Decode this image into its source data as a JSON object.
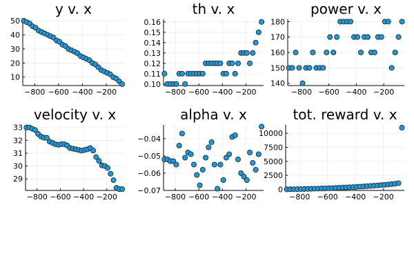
{
  "colors": {
    "marker": "#1f9ad9",
    "marker_edge": "#1a1a1a",
    "grid": "#ececec",
    "axis": "#000000"
  },
  "chart_data": [
    {
      "type": "scatter",
      "title": "y v. x",
      "xlim": [
        -900,
        -50
      ],
      "ylim": [
        4,
        51
      ],
      "xticks": [
        -800,
        -600,
        -400,
        -200
      ],
      "xtick_labels": [
        "−800",
        "−600",
        "−400",
        "−200"
      ],
      "yticks": [
        10,
        20,
        30,
        40,
        50
      ],
      "ytick_labels": [
        "10",
        "20",
        "30",
        "40",
        "50"
      ],
      "grid": true,
      "legend": "none",
      "x": [
        -892,
        -867,
        -842,
        -817,
        -792,
        -767,
        -742,
        -717,
        -692,
        -667,
        -642,
        -617,
        -592,
        -567,
        -542,
        -517,
        -492,
        -467,
        -442,
        -417,
        -392,
        -367,
        -342,
        -317,
        -292,
        -267,
        -242,
        -217,
        -192,
        -167,
        -142,
        -117,
        -92,
        -67
      ],
      "y": [
        50,
        49,
        48,
        46,
        45,
        43,
        42,
        41,
        40,
        39,
        38,
        36,
        35,
        33,
        32,
        30,
        29,
        28,
        27,
        25,
        24,
        23,
        22,
        20,
        19,
        17,
        15,
        14,
        13,
        12,
        10,
        9,
        7,
        5
      ]
    },
    {
      "type": "scatter",
      "title": "th v. x",
      "xlim": [
        -900,
        -50
      ],
      "ylim": [
        0.0985,
        0.1625
      ],
      "xticks": [
        -800,
        -600,
        -400,
        -200
      ],
      "xtick_labels": [
        "−800",
        "−600",
        "−400",
        "−200"
      ],
      "yticks": [
        0.1,
        0.11,
        0.12,
        0.13,
        0.14,
        0.15,
        0.16
      ],
      "ytick_labels": [
        "0.10",
        "0.11",
        "0.12",
        "0.13",
        "0.14",
        "0.15",
        "0.16"
      ],
      "grid": true,
      "legend": "none",
      "x": [
        -892,
        -867,
        -842,
        -817,
        -792,
        -767,
        -742,
        -717,
        -692,
        -667,
        -642,
        -617,
        -592,
        -567,
        -542,
        -517,
        -492,
        -467,
        -442,
        -417,
        -392,
        -367,
        -342,
        -317,
        -292,
        -267,
        -242,
        -217,
        -192,
        -167,
        -142,
        -117,
        -92,
        -67
      ],
      "y": [
        0.11,
        0.1,
        0.1,
        0.1,
        0.1,
        0.11,
        0.11,
        0.1,
        0.11,
        0.11,
        0.11,
        0.11,
        0.11,
        0.11,
        0.12,
        0.12,
        0.12,
        0.12,
        0.12,
        0.12,
        0.11,
        0.11,
        0.12,
        0.12,
        0.11,
        0.12,
        0.13,
        0.13,
        0.13,
        0.12,
        0.13,
        0.14,
        0.15,
        0.16
      ]
    },
    {
      "type": "scatter",
      "title": "power v. x",
      "xlim": [
        -900,
        -50
      ],
      "ylim": [
        138.5,
        181.5
      ],
      "xticks": [
        -800,
        -600,
        -400,
        -200
      ],
      "xtick_labels": [
        "−800",
        "−600",
        "−400",
        "−200"
      ],
      "yticks": [
        140,
        150,
        160,
        170,
        180
      ],
      "ytick_labels": [
        "140",
        "150",
        "160",
        "170",
        "180"
      ],
      "grid": true,
      "legend": "none",
      "x": [
        -892,
        -867,
        -842,
        -817,
        -792,
        -767,
        -742,
        -717,
        -692,
        -667,
        -642,
        -617,
        -592,
        -567,
        -542,
        -517,
        -492,
        -467,
        -442,
        -417,
        -392,
        -367,
        -342,
        -317,
        -292,
        -267,
        -242,
        -217,
        -192,
        -167,
        -142,
        -117,
        -92,
        -67
      ],
      "y": [
        150,
        150,
        160,
        150,
        140,
        150,
        150,
        160,
        150,
        150,
        150,
        160,
        170,
        160,
        170,
        180,
        180,
        180,
        180,
        170,
        170,
        160,
        170,
        170,
        160,
        160,
        170,
        170,
        180,
        180,
        150,
        160,
        170,
        180
      ]
    },
    {
      "type": "scatter",
      "title": "velocity v. x",
      "xlim": [
        -900,
        -50
      ],
      "ylim": [
        28.1,
        33.2
      ],
      "xticks": [
        -800,
        -600,
        -400,
        -200
      ],
      "xtick_labels": [
        "−800",
        "−600",
        "−400",
        "−200"
      ],
      "yticks": [
        29,
        30,
        31,
        32,
        33
      ],
      "ytick_labels": [
        "29",
        "30",
        "31",
        "32",
        "33"
      ],
      "grid": true,
      "legend": "none",
      "x": [
        -892,
        -867,
        -842,
        -817,
        -792,
        -767,
        -742,
        -717,
        -692,
        -667,
        -642,
        -617,
        -592,
        -567,
        -542,
        -517,
        -492,
        -467,
        -442,
        -417,
        -392,
        -367,
        -342,
        -317,
        -292,
        -267,
        -242,
        -217,
        -192,
        -167,
        -142,
        -117,
        -92,
        -67
      ],
      "y": [
        33.0,
        33.0,
        32.9,
        32.8,
        32.5,
        32.3,
        32.2,
        32.2,
        31.9,
        31.8,
        31.7,
        31.65,
        31.7,
        31.7,
        31.6,
        31.4,
        31.35,
        31.3,
        31.25,
        31.2,
        31.25,
        31.3,
        31.4,
        31.2,
        30.7,
        30.4,
        30.05,
        30.0,
        29.85,
        29.4,
        28.9,
        28.3,
        28.2,
        28.2
      ]
    },
    {
      "type": "scatter",
      "title": "alpha v. x",
      "xlim": [
        -900,
        -50
      ],
      "ylim": [
        -0.07,
        -0.032
      ],
      "xticks": [
        -800,
        -600,
        -400,
        -200
      ],
      "xtick_labels": [
        "−800",
        "−600",
        "−400",
        "−200"
      ],
      "yticks": [
        -0.07,
        -0.06,
        -0.05,
        -0.04
      ],
      "ytick_labels": [
        "−0.07",
        "−0.06",
        "−0.05",
        "−0.04"
      ],
      "grid": true,
      "legend": "none",
      "x": [
        -892,
        -867,
        -842,
        -817,
        -792,
        -767,
        -742,
        -717,
        -692,
        -667,
        -642,
        -617,
        -592,
        -567,
        -542,
        -517,
        -492,
        -467,
        -442,
        -417,
        -392,
        -367,
        -342,
        -317,
        -292,
        -267,
        -242,
        -217,
        -192,
        -167,
        -142,
        -117,
        -92,
        -67
      ],
      "y": [
        -0.052,
        -0.052,
        -0.053,
        -0.053,
        -0.055,
        -0.044,
        -0.037,
        -0.051,
        -0.048,
        -0.049,
        -0.055,
        -0.061,
        -0.067,
        -0.058,
        -0.051,
        -0.045,
        -0.042,
        -0.055,
        -0.069,
        -0.055,
        -0.064,
        -0.051,
        -0.049,
        -0.039,
        -0.038,
        -0.052,
        -0.06,
        -0.062,
        -0.064,
        -0.048,
        -0.054,
        -0.058,
        -0.049,
        -0.033
      ]
    },
    {
      "type": "scatter",
      "title": "tot. reward v. x",
      "xlim": [
        -900,
        -50
      ],
      "ylim": [
        -200,
        11500
      ],
      "xticks": [
        -800,
        -600,
        -400,
        -200
      ],
      "xtick_labels": [
        "−800",
        "−600",
        "−400",
        "−200"
      ],
      "yticks": [
        0,
        2500,
        5000,
        7500,
        10000
      ],
      "ytick_labels": [
        "0",
        "2500",
        "5000",
        "7500",
        "10000"
      ],
      "grid": true,
      "legend": "none",
      "x": [
        -892,
        -867,
        -842,
        -817,
        -792,
        -767,
        -742,
        -717,
        -692,
        -667,
        -642,
        -617,
        -592,
        -567,
        -542,
        -517,
        -492,
        -467,
        -442,
        -417,
        -392,
        -367,
        -342,
        -317,
        -292,
        -267,
        -242,
        -217,
        -192,
        -167,
        -142,
        -117,
        -92,
        -67
      ],
      "y": [
        0,
        10,
        20,
        30,
        45,
        60,
        75,
        90,
        110,
        130,
        150,
        170,
        195,
        220,
        245,
        275,
        305,
        335,
        370,
        405,
        440,
        480,
        520,
        560,
        605,
        650,
        700,
        750,
        800,
        860,
        920,
        990,
        1100,
        11000
      ]
    }
  ]
}
